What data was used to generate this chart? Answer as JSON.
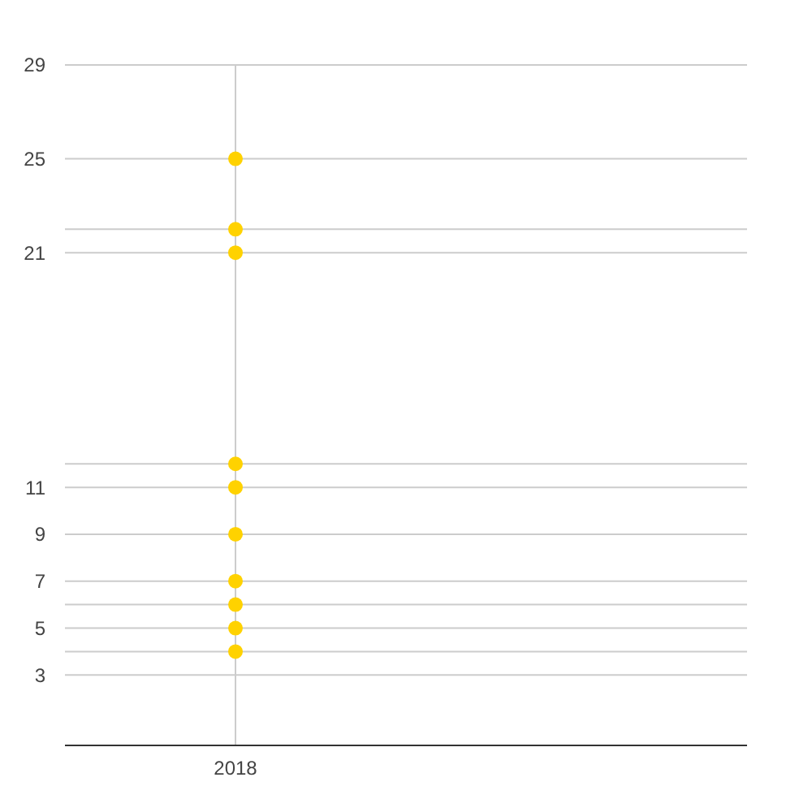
{
  "chart_data": {
    "type": "scatter",
    "categories": [
      "2018",
      null
    ],
    "series": [
      {
        "color": "#ffd200",
        "values": [
          25,
          null
        ]
      },
      {
        "color": "#ffd200",
        "values": [
          22,
          null
        ]
      },
      {
        "color": "#ffd200",
        "values": [
          21,
          null
        ]
      },
      {
        "color": "#ffd200",
        "values": [
          12,
          null
        ]
      },
      {
        "color": "#ffd200",
        "values": [
          11,
          null
        ]
      },
      {
        "color": "#ffd200",
        "values": [
          9,
          null
        ]
      },
      {
        "color": "#ffd200",
        "values": [
          7,
          null
        ]
      },
      {
        "color": "#ffd200",
        "values": [
          6,
          null
        ]
      },
      {
        "color": "#ffd200",
        "values": [
          5,
          null
        ]
      },
      {
        "color": "#ffd200",
        "values": [
          4,
          null
        ]
      }
    ],
    "ylim": [
      0,
      29
    ],
    "yticks": [
      3,
      {
        "value": 4,
        "label": null
      },
      5,
      {
        "value": 6,
        "label": null
      },
      7,
      9,
      11,
      {
        "value": 12,
        "label": null
      },
      21,
      {
        "value": 22,
        "label": null
      },
      25,
      29
    ],
    "grid": true,
    "marker": "circle"
  }
}
